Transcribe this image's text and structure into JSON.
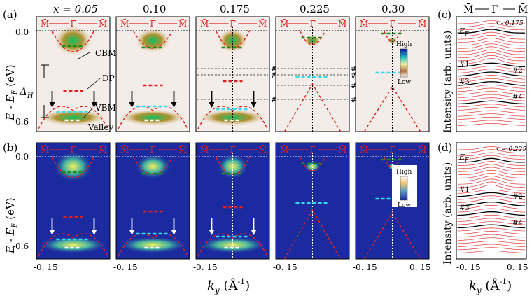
{
  "figure": {
    "panel_labels": {
      "a": "(a)",
      "b": "(b)",
      "c": "(c)",
      "d": "(d)"
    },
    "doping_values": [
      "x = 0.05",
      "0.10",
      "0.175",
      "0.225",
      "0.30"
    ],
    "path_label": {
      "left": "M̄",
      "center": "Γ̄",
      "right": "M̄"
    },
    "y_axis_label": "E - E",
    "y_axis_sub": "F",
    "y_axis_unit": " (eV)",
    "y_ticks": [
      "0.0",
      "-0.6"
    ],
    "x_ticks": [
      "-0. 15",
      "0. 15"
    ],
    "x_axis_label": "k",
    "x_axis_sub": "y",
    "x_axis_unit": " (Å",
    "x_axis_exp": "-1",
    "x_axis_close": ")",
    "panel_a_annotations": {
      "cbm": "CBM",
      "dp": "DP",
      "vbm": "VBM",
      "valley": "Valley",
      "delta": "Δ",
      "delta_sub": "H"
    },
    "cut_labels": [
      "#1",
      "#2",
      "#3",
      "#4"
    ],
    "colorbar": {
      "high": "High",
      "low": "Low"
    },
    "edc_y_label": "Intensity (arb. units)",
    "edc_c_doping": "x - 0.175",
    "edc_d_doping": "x = 0.225",
    "edc_ef": "E",
    "edc_ef_sub": "F"
  },
  "colors": {
    "dispersion": "#e02020",
    "cbm": "#1a8a1a",
    "dp": "#e02020",
    "vbm": "#33ddee",
    "valley": "#ffffff",
    "arrow": "#000000",
    "panel_b_bg": "#1c2aa0"
  }
}
